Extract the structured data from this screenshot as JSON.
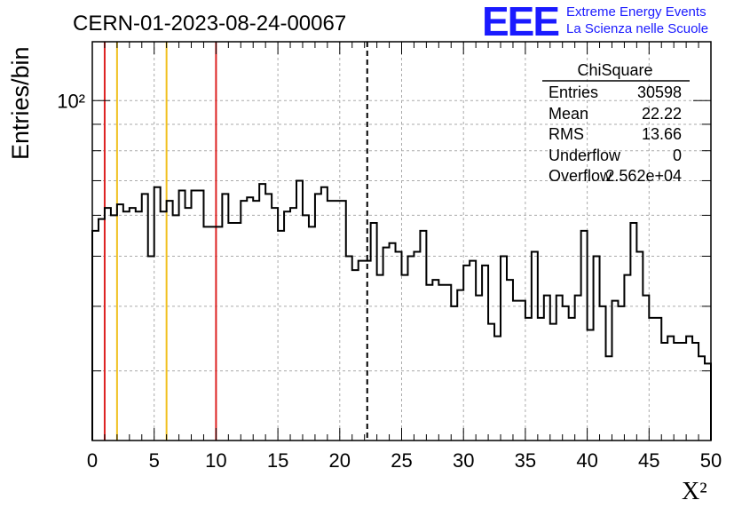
{
  "header": {
    "run_title": "CERN-01-2023-08-24-00067",
    "logo_text": "EEE",
    "logo_line1": "Extreme Energy Events",
    "logo_line2": "La Scienza nelle Scuole",
    "logo_color": "#1a1aff"
  },
  "stats": {
    "title": "ChiSquare",
    "rows": [
      {
        "label": "Entries",
        "value": "30598"
      },
      {
        "label": "Mean",
        "value": "22.22"
      },
      {
        "label": "RMS",
        "value": "13.66"
      },
      {
        "label": "Underflow",
        "value": "0"
      },
      {
        "label": "Overflow",
        "value": "2.562e+04"
      }
    ]
  },
  "chart_data": {
    "type": "histogram",
    "xlabel": "X²",
    "ylabel": "Entries/bin",
    "xlim": [
      0,
      50
    ],
    "ylim": [
      22,
      130
    ],
    "ylog": true,
    "grid": true,
    "x_ticks": [
      "0",
      "5",
      "10",
      "15",
      "20",
      "25",
      "30",
      "35",
      "40",
      "45",
      "50"
    ],
    "y_tick_label": "10²",
    "bin_width": 0.5,
    "values": [
      56,
      59,
      62,
      60,
      63,
      61,
      62,
      61,
      66,
      50,
      68,
      61,
      64,
      60,
      67,
      62,
      67,
      67,
      57,
      57,
      57,
      66,
      58,
      58,
      64,
      65,
      64,
      69,
      66,
      62,
      56,
      61,
      62,
      70,
      60,
      57,
      66,
      68,
      64,
      64,
      64,
      50,
      47,
      49,
      49,
      58,
      46,
      52,
      53,
      51,
      46,
      50,
      51,
      56,
      44,
      45,
      44,
      44,
      40,
      43,
      48,
      49,
      42,
      48,
      37,
      35,
      50,
      45,
      41,
      41,
      38,
      51,
      38,
      42,
      37,
      42,
      40,
      38,
      42,
      56,
      36,
      50,
      40,
      32,
      41,
      40,
      46,
      58,
      51,
      42,
      38,
      38,
      34,
      35,
      34,
      34,
      35,
      34,
      32,
      31
    ],
    "bins_note": "",
    "vlines": [
      {
        "x": 1,
        "color": "#dd2222",
        "style": "solid"
      },
      {
        "x": 2,
        "color": "#f0c020",
        "style": "solid"
      },
      {
        "x": 6,
        "color": "#f0c020",
        "style": "solid"
      },
      {
        "x": 10,
        "color": "#dd2222",
        "style": "solid"
      },
      {
        "x": 22.22,
        "color": "#000000",
        "style": "dashed"
      }
    ]
  }
}
